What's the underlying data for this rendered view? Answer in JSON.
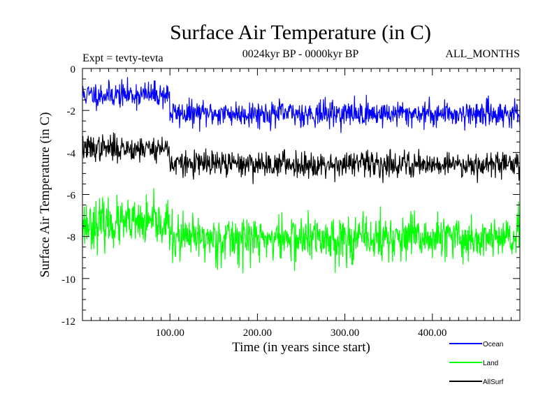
{
  "chart_data": {
    "type": "line",
    "title": "Surface Air Temperature (in C)",
    "subtitle": "0024kyr BP - 0000kyr BP",
    "expt_label": "Expt = tevty-tevta",
    "months_label": "ALL_MONTHS",
    "xlabel": "Time (in years since start)",
    "ylabel": "Surface Air Temperature (in C)",
    "xlim": [
      0,
      500
    ],
    "ylim": [
      -12,
      0
    ],
    "x_ticks": [
      100,
      200,
      300,
      400
    ],
    "x_tick_labels": [
      "100.00",
      "200.00",
      "300.00",
      "400.00"
    ],
    "y_ticks": [
      0,
      -2,
      -4,
      -6,
      -8,
      -10,
      -12
    ],
    "y_tick_labels": [
      "0",
      "-2",
      "-4",
      "-6",
      "-8",
      "-10",
      "-12"
    ],
    "grid": false,
    "legend_position": "bottom-right",
    "step_year": 100,
    "sample_every_years": 0.5,
    "series": [
      {
        "name": "Ocean",
        "color": "#0000ff",
        "mean_before": -1.25,
        "mean_after": -2.15,
        "spread": 0.55,
        "seed": 11
      },
      {
        "name": "Land",
        "color": "#00ff00",
        "mean_before": -7.4,
        "mean_after": -8.1,
        "spread": 1.0,
        "seed": 23
      },
      {
        "name": "AllSurf",
        "color": "#000000",
        "mean_before": -3.8,
        "mean_after": -4.55,
        "spread": 0.55,
        "seed": 37
      }
    ]
  }
}
